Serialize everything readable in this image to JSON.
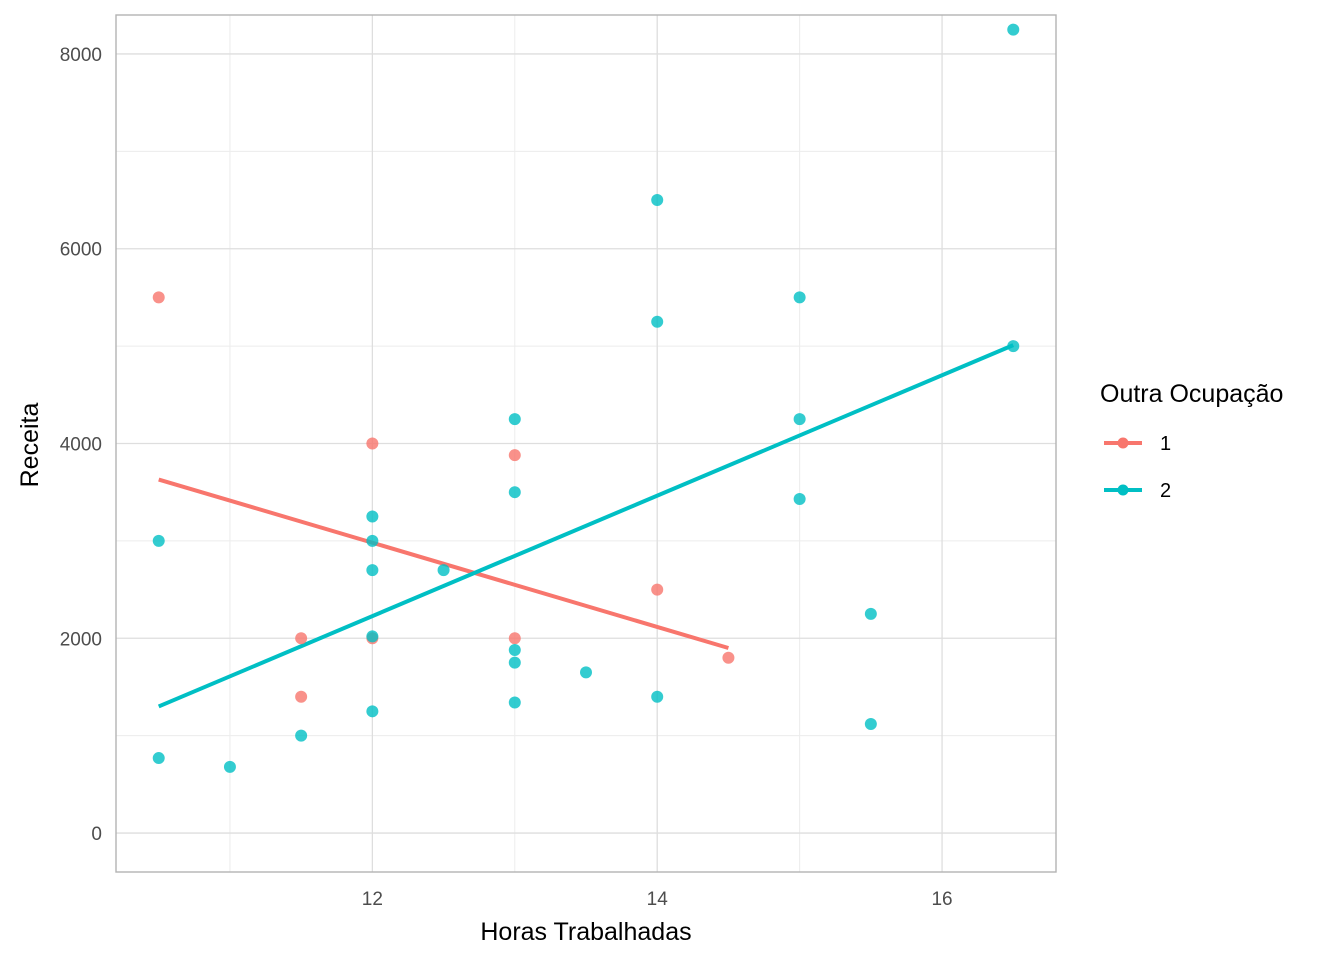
{
  "chart_data": {
    "type": "scatter",
    "xlabel": "Horas Trabalhadas",
    "ylabel": "Receita",
    "xlim": [
      10.2,
      16.8
    ],
    "ylim": [
      -400,
      8400
    ],
    "x_ticks": [
      12,
      14,
      16
    ],
    "y_ticks": [
      0,
      2000,
      4000,
      6000,
      8000
    ],
    "x_tick_labels": [
      "12",
      "14",
      "16"
    ],
    "y_tick_labels": [
      "0",
      "2000",
      "4000",
      "6000",
      "8000"
    ],
    "grid": true,
    "legend": {
      "title": "Outra Ocupação",
      "placement": "right",
      "entries": [
        "1",
        "2"
      ]
    },
    "series": [
      {
        "name": "1",
        "color": "#F8766D",
        "points": [
          {
            "x": 10.5,
            "y": 5500
          },
          {
            "x": 11.5,
            "y": 2000
          },
          {
            "x": 11.5,
            "y": 1400
          },
          {
            "x": 12,
            "y": 4000
          },
          {
            "x": 12,
            "y": 2000
          },
          {
            "x": 13,
            "y": 3880
          },
          {
            "x": 13,
            "y": 2000
          },
          {
            "x": 14,
            "y": 2500
          },
          {
            "x": 14.5,
            "y": 1800
          }
        ],
        "trend": [
          {
            "x": 10.5,
            "y": 3630
          },
          {
            "x": 14.5,
            "y": 1900
          }
        ]
      },
      {
        "name": "2",
        "color": "#00BFC4",
        "points": [
          {
            "x": 10.5,
            "y": 3000
          },
          {
            "x": 10.5,
            "y": 770
          },
          {
            "x": 11,
            "y": 680
          },
          {
            "x": 11.5,
            "y": 1000
          },
          {
            "x": 12,
            "y": 3250
          },
          {
            "x": 12,
            "y": 3000
          },
          {
            "x": 12,
            "y": 2700
          },
          {
            "x": 12,
            "y": 2020
          },
          {
            "x": 12,
            "y": 1250
          },
          {
            "x": 12.5,
            "y": 2700
          },
          {
            "x": 13,
            "y": 4250
          },
          {
            "x": 13,
            "y": 3500
          },
          {
            "x": 13,
            "y": 1880
          },
          {
            "x": 13,
            "y": 1750
          },
          {
            "x": 13,
            "y": 1340
          },
          {
            "x": 13.5,
            "y": 1650
          },
          {
            "x": 14,
            "y": 6500
          },
          {
            "x": 14,
            "y": 5250
          },
          {
            "x": 14,
            "y": 1400
          },
          {
            "x": 15,
            "y": 5500
          },
          {
            "x": 15,
            "y": 4250
          },
          {
            "x": 15,
            "y": 3430
          },
          {
            "x": 15.5,
            "y": 2250
          },
          {
            "x": 15.5,
            "y": 1120
          },
          {
            "x": 16.5,
            "y": 8250
          },
          {
            "x": 16.5,
            "y": 5000
          }
        ],
        "trend": [
          {
            "x": 10.5,
            "y": 1300
          },
          {
            "x": 16.5,
            "y": 5010
          }
        ]
      }
    ]
  }
}
